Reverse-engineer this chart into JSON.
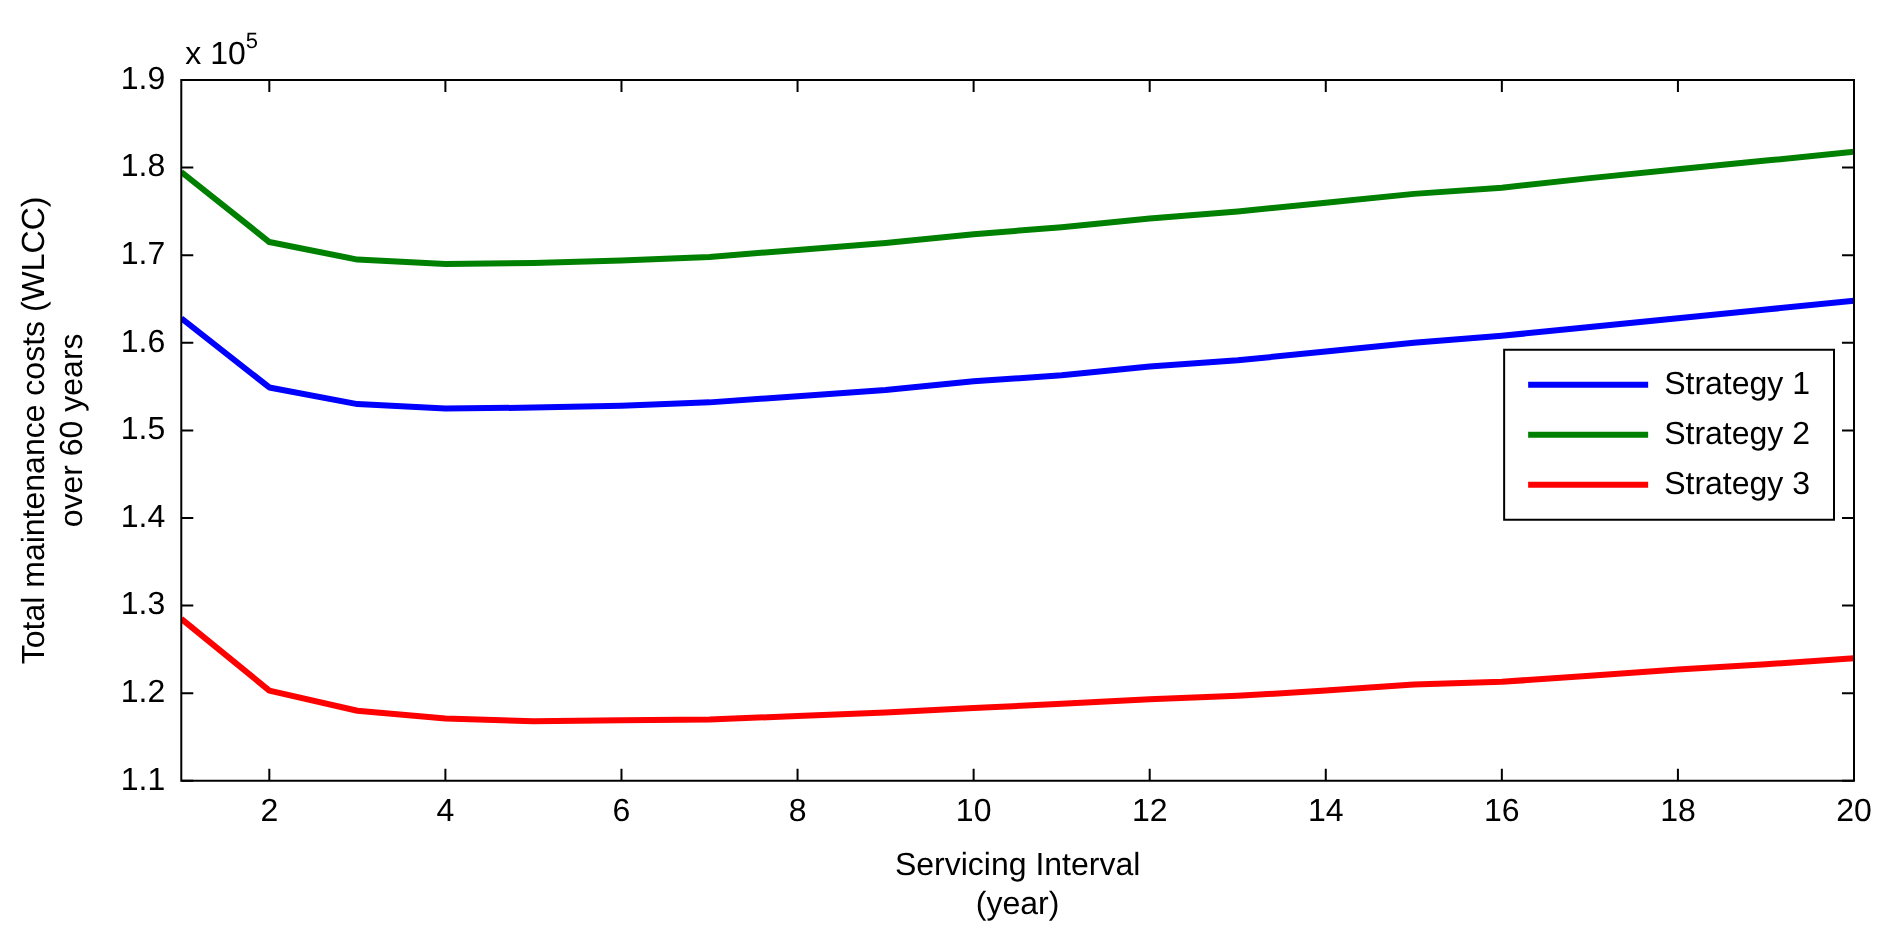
{
  "chart_data": {
    "type": "line",
    "xlabel": "Servicing Interval\n(year)",
    "ylabel": "Total maintenance costs (WLCC)\nover 60 years",
    "annotations": [
      "x 10$^{5}$"
    ],
    "x": [
      1,
      2,
      3,
      4,
      5,
      6,
      7,
      8,
      9,
      10,
      11,
      12,
      13,
      14,
      15,
      16,
      17,
      18,
      19,
      20
    ],
    "xlim": [
      1,
      20
    ],
    "xticks": [
      2,
      4,
      6,
      8,
      10,
      12,
      14,
      16,
      18,
      20
    ],
    "ylim": [
      1.1,
      1.9
    ],
    "yticks": [
      1.1,
      1.2,
      1.3,
      1.4,
      1.5,
      1.6,
      1.7,
      1.8,
      1.9
    ],
    "grid": false,
    "legend": "right",
    "marker": "none",
    "line_style": "solid",
    "series": [
      {
        "name": "Strategy 1",
        "color": "#0000ff",
        "values": [
          1.628,
          1.549,
          1.53,
          1.525,
          1.526,
          1.528,
          1.532,
          1.539,
          1.546,
          1.556,
          1.563,
          1.573,
          1.58,
          1.59,
          1.6,
          1.608,
          1.618,
          1.628,
          1.638,
          1.648
        ]
      },
      {
        "name": "Strategy 2",
        "color": "#008000",
        "values": [
          1.795,
          1.715,
          1.695,
          1.69,
          1.691,
          1.694,
          1.698,
          1.706,
          1.714,
          1.724,
          1.732,
          1.742,
          1.75,
          1.76,
          1.77,
          1.777,
          1.788,
          1.798,
          1.808,
          1.818
        ]
      },
      {
        "name": "Strategy 3",
        "color": "#ff0000",
        "values": [
          1.285,
          1.203,
          1.18,
          1.171,
          1.168,
          1.169,
          1.17,
          1.174,
          1.178,
          1.183,
          1.188,
          1.193,
          1.197,
          1.203,
          1.21,
          1.213,
          1.22,
          1.227,
          1.233,
          1.24
        ]
      }
    ]
  }
}
